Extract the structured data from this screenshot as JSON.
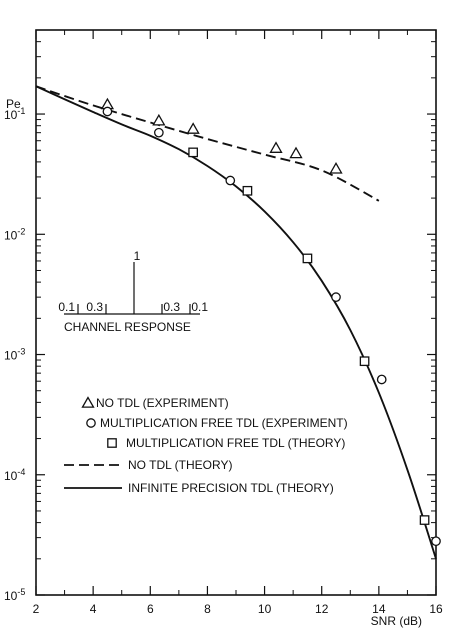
{
  "chart_data": {
    "type": "line",
    "xlabel": "SNR (dB)",
    "ylabel": "Pe",
    "xlim": [
      2,
      16
    ],
    "ylim": [
      1e-05,
      0.5
    ],
    "yscale": "log",
    "x_ticks": [
      "2",
      "4",
      "6",
      "8",
      "10",
      "12",
      "14",
      "16"
    ],
    "y_ticks": [
      {
        "value": 0.1,
        "base": "10",
        "exp": "-1"
      },
      {
        "value": 0.01,
        "base": "10",
        "exp": "-2"
      },
      {
        "value": 0.001,
        "base": "10",
        "exp": "-3"
      },
      {
        "value": 0.0001,
        "base": "10",
        "exp": "-4"
      },
      {
        "value": 1e-05,
        "base": "10",
        "exp": "-5"
      }
    ],
    "grid": false,
    "legend_placement": "bottom-left",
    "series": [
      {
        "name": "NO TDL (EXPERIMENT)",
        "legend_symbol": "△",
        "marker": "triangle",
        "x": [
          4.5,
          6.3,
          7.5,
          10.4,
          11.1,
          12.5
        ],
        "y": [
          0.12,
          0.088,
          0.075,
          0.052,
          0.047,
          0.035
        ]
      },
      {
        "name": "MULTIPLICATION FREE TDL (EXPERIMENT)",
        "legend_symbol": "○",
        "marker": "circle",
        "x": [
          4.5,
          6.3,
          8.8,
          12.5,
          14.1,
          16.0
        ],
        "y": [
          0.105,
          0.07,
          0.028,
          0.003,
          0.00062,
          2.8e-05
        ]
      },
      {
        "name": "MULTIPLICATION FREE TDL (THEORY)",
        "legend_symbol": "□",
        "marker": "square",
        "x": [
          7.5,
          9.4,
          11.5,
          13.5,
          15.6
        ],
        "y": [
          0.048,
          0.023,
          0.0063,
          0.00088,
          4.2e-05
        ]
      },
      {
        "name": "NO TDL (THEORY)",
        "legend_symbol": "- - -",
        "line": "dashed",
        "x": [
          2,
          4,
          6,
          8,
          10,
          12,
          14
        ],
        "y": [
          0.17,
          0.118,
          0.085,
          0.062,
          0.046,
          0.034,
          0.019
        ]
      },
      {
        "name": "INFINITE PRECISION TDL (THEORY)",
        "legend_symbol": "———",
        "line": "solid",
        "x": [
          2,
          3,
          4,
          5,
          6,
          7,
          8,
          9,
          10,
          11,
          12,
          13,
          14,
          15,
          16
        ],
        "y": [
          0.17,
          0.133,
          0.104,
          0.082,
          0.066,
          0.051,
          0.037,
          0.025,
          0.0155,
          0.0086,
          0.0041,
          0.0016,
          0.00048,
          0.00011,
          2e-05
        ]
      }
    ],
    "inset": {
      "title": "CHANNEL RESPONSE",
      "taps": [
        {
          "label": "0.1",
          "value": 0.1
        },
        {
          "label": "0.3",
          "value": 0.3
        },
        {
          "label": "1",
          "value": 1
        },
        {
          "label": "0.3",
          "value": 0.3
        },
        {
          "label": "0.1",
          "value": 0.1
        }
      ]
    }
  }
}
